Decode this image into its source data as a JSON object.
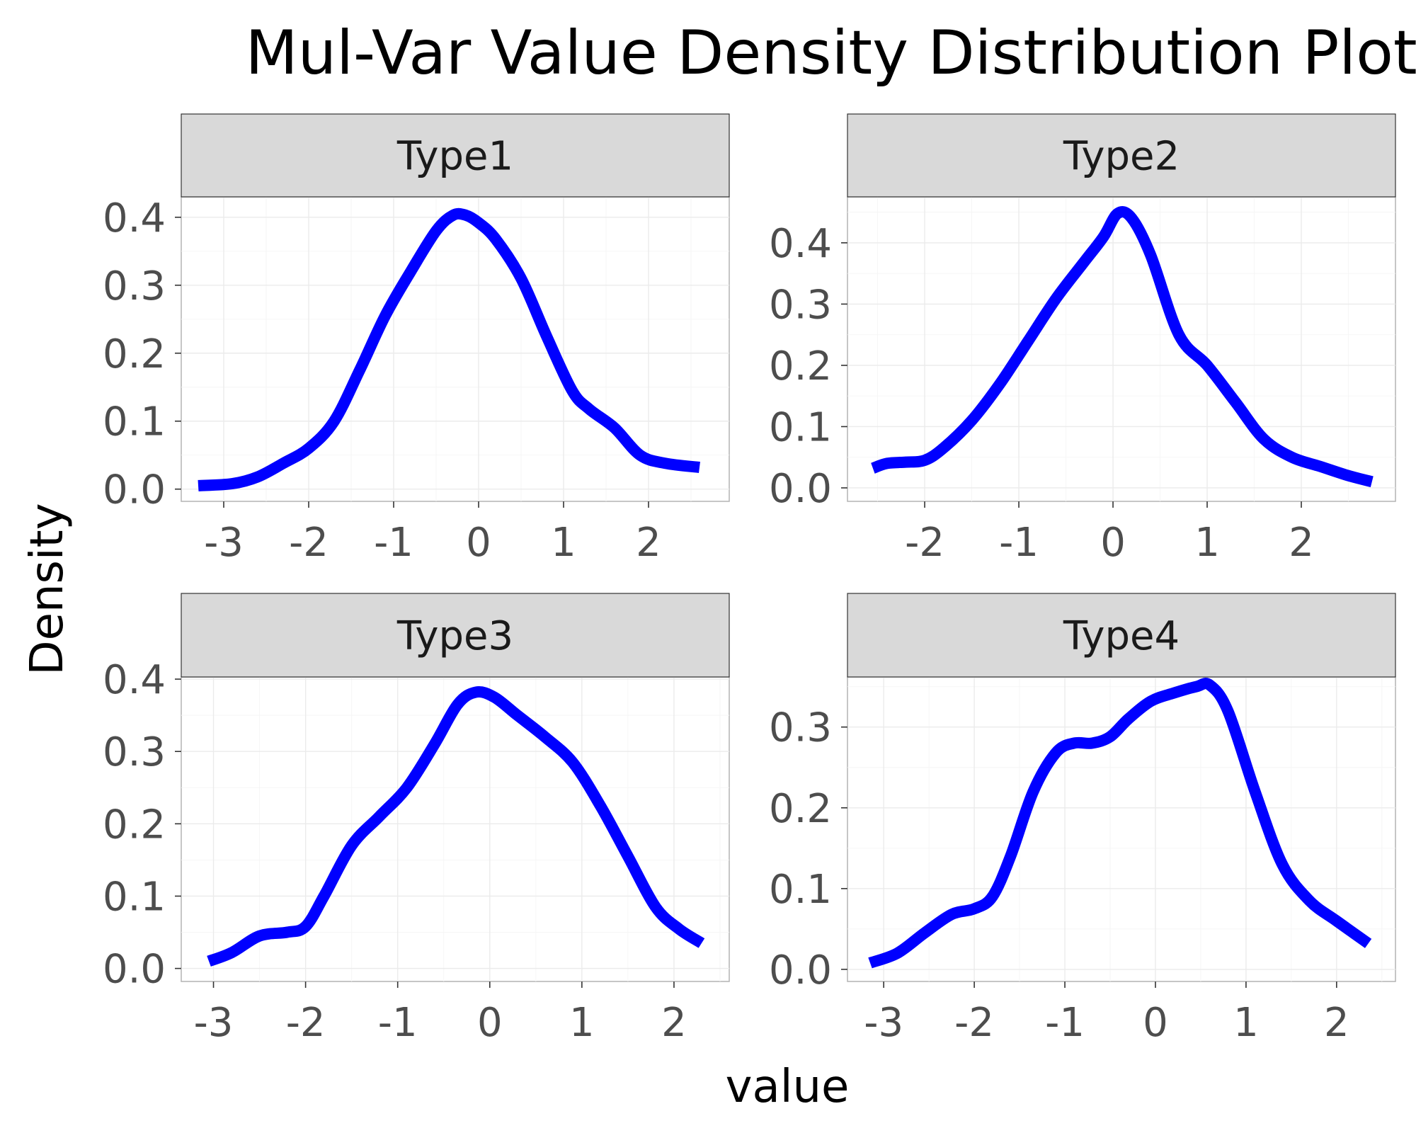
{
  "chart_data": {
    "type": "line",
    "title": "Mul-Var Value Density Distribution Plot",
    "xlabel": "value",
    "ylabel": "Density",
    "line_color": "#0000ff",
    "grid": true,
    "facets": [
      {
        "name": "Type1",
        "xlim": [
          -3.5,
          2.95
        ],
        "ylim": [
          -0.018,
          0.43
        ],
        "x_ticks": [
          -3,
          -2,
          -1,
          0,
          1,
          2
        ],
        "x_tick_labels": [
          "-3",
          "-2",
          "-1",
          "0",
          "1",
          "2"
        ],
        "y_ticks": [
          0.0,
          0.1,
          0.2,
          0.3,
          0.4
        ],
        "y_tick_labels": [
          "0.0",
          "0.1",
          "0.2",
          "0.3",
          "0.4"
        ],
        "x": [
          -3.3,
          -2.9,
          -2.6,
          -2.3,
          -2.0,
          -1.7,
          -1.4,
          -1.1,
          -0.8,
          -0.5,
          -0.3,
          -0.15,
          0.0,
          0.2,
          0.5,
          0.8,
          1.1,
          1.3,
          1.6,
          1.9,
          2.2,
          2.6
        ],
        "y": [
          0.005,
          0.008,
          0.018,
          0.038,
          0.06,
          0.1,
          0.175,
          0.255,
          0.32,
          0.38,
          0.403,
          0.403,
          0.392,
          0.368,
          0.31,
          0.225,
          0.145,
          0.118,
          0.09,
          0.05,
          0.038,
          0.032
        ]
      },
      {
        "name": "Type2",
        "xlim": [
          -2.82,
          3.0
        ],
        "ylim": [
          -0.022,
          0.475
        ],
        "x_ticks": [
          -2,
          -1,
          0,
          1,
          2
        ],
        "x_tick_labels": [
          "-2",
          "-1",
          "0",
          "1",
          "2"
        ],
        "y_ticks": [
          0.0,
          0.1,
          0.2,
          0.3,
          0.4
        ],
        "y_tick_labels": [
          "0.0",
          "0.1",
          "0.2",
          "0.3",
          "0.4"
        ],
        "x": [
          -2.55,
          -2.4,
          -2.2,
          -2.0,
          -1.8,
          -1.5,
          -1.2,
          -0.9,
          -0.6,
          -0.3,
          -0.1,
          0.05,
          0.2,
          0.4,
          0.7,
          1.0,
          1.3,
          1.6,
          1.9,
          2.2,
          2.5,
          2.75
        ],
        "y": [
          0.032,
          0.04,
          0.042,
          0.045,
          0.065,
          0.11,
          0.17,
          0.24,
          0.31,
          0.37,
          0.41,
          0.448,
          0.44,
          0.38,
          0.25,
          0.2,
          0.14,
          0.08,
          0.05,
          0.035,
          0.02,
          0.01
        ]
      },
      {
        "name": "Type3",
        "xlim": [
          -3.35,
          2.6
        ],
        "ylim": [
          -0.018,
          0.403
        ],
        "x_ticks": [
          -3,
          -2,
          -1,
          0,
          1,
          2
        ],
        "x_tick_labels": [
          "-3",
          "-2",
          "-1",
          "0",
          "1",
          "2"
        ],
        "y_ticks": [
          0.0,
          0.1,
          0.2,
          0.3,
          0.4
        ],
        "y_tick_labels": [
          "0.0",
          "0.1",
          "0.2",
          "0.3",
          "0.4"
        ],
        "x": [
          -3.05,
          -2.8,
          -2.5,
          -2.2,
          -2.0,
          -1.8,
          -1.5,
          -1.2,
          -0.9,
          -0.6,
          -0.35,
          -0.15,
          0.05,
          0.3,
          0.6,
          0.9,
          1.2,
          1.5,
          1.8,
          2.05,
          2.3
        ],
        "y": [
          0.01,
          0.022,
          0.045,
          0.05,
          0.058,
          0.1,
          0.17,
          0.21,
          0.25,
          0.31,
          0.365,
          0.382,
          0.375,
          0.35,
          0.32,
          0.285,
          0.225,
          0.155,
          0.085,
          0.055,
          0.035
        ]
      },
      {
        "name": "Type4",
        "xlim": [
          -3.4,
          2.65
        ],
        "ylim": [
          -0.015,
          0.362
        ],
        "x_ticks": [
          -3,
          -2,
          -1,
          0,
          1,
          2
        ],
        "x_tick_labels": [
          "-3",
          "-2",
          "-1",
          "0",
          "1",
          "2"
        ],
        "y_ticks": [
          0.0,
          0.1,
          0.2,
          0.3
        ],
        "y_tick_labels": [
          "0.0",
          "0.1",
          "0.2",
          "0.3"
        ],
        "x": [
          -3.15,
          -2.85,
          -2.55,
          -2.25,
          -2.0,
          -1.8,
          -1.6,
          -1.35,
          -1.1,
          -0.9,
          -0.7,
          -0.5,
          -0.3,
          -0.05,
          0.2,
          0.45,
          0.6,
          0.8,
          1.1,
          1.4,
          1.7,
          2.0,
          2.35
        ],
        "y": [
          0.008,
          0.02,
          0.045,
          0.068,
          0.075,
          0.09,
          0.14,
          0.22,
          0.268,
          0.28,
          0.28,
          0.288,
          0.31,
          0.332,
          0.342,
          0.35,
          0.352,
          0.32,
          0.22,
          0.13,
          0.085,
          0.06,
          0.032
        ]
      }
    ]
  }
}
